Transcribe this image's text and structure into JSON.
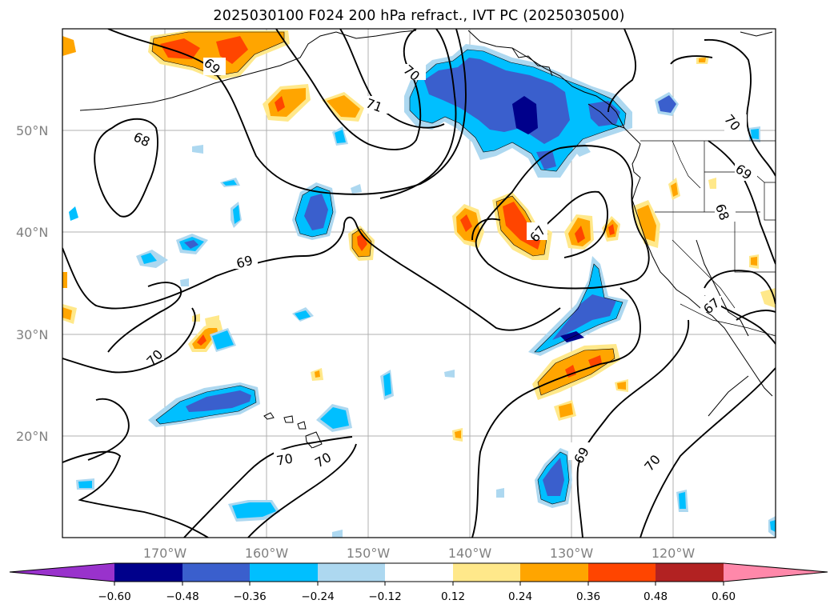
{
  "title": "2025030100 F024 200 hPa refract., IVT PC (2025030500)",
  "map": {
    "lat_labels": [
      "50°N",
      "40°N",
      "30°N",
      "20°N"
    ],
    "lon_labels": [
      "170°W",
      "160°W",
      "150°W",
      "140°W",
      "130°W",
      "120°W"
    ],
    "contour_labels": [
      "68",
      "69",
      "70",
      "71",
      "69",
      "70",
      "70",
      "70",
      "69",
      "70",
      "70",
      "68",
      "69",
      "67",
      "67"
    ]
  },
  "colorbar": {
    "ticks": [
      "−0.60",
      "−0.48",
      "−0.36",
      "−0.24",
      "−0.12",
      "0.12",
      "0.24",
      "0.36",
      "0.48",
      "0.60"
    ],
    "colors": {
      "under": "#9932cc",
      "neg_060": "#00008b",
      "neg_048": "#3a5fcd",
      "neg_036": "#00bfff",
      "neg_024": "#add8f0",
      "zero": "#ffffff",
      "pos_012": "#ffe88a",
      "pos_024": "#ffa500",
      "pos_036": "#ff4500",
      "pos_048": "#b22222",
      "over": "#ff88aa"
    }
  }
}
